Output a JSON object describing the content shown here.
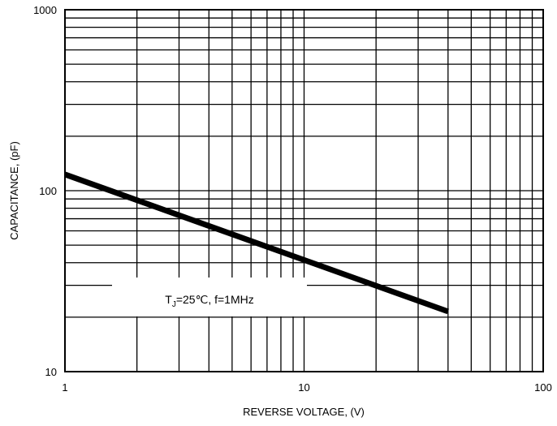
{
  "chart_data": {
    "type": "line",
    "title": "",
    "xlabel": "REVERSE VOLTAGE, (V)",
    "ylabel": "CAPACITANCE, (pF)",
    "xscale": "log",
    "yscale": "log",
    "xlim": [
      1,
      100
    ],
    "ylim": [
      10,
      1000
    ],
    "grid": true,
    "x_tick_labels": [
      "1",
      "10",
      "100"
    ],
    "y_tick_labels": [
      "10",
      "100",
      "1000"
    ],
    "series": [
      {
        "x": [
          1,
          40
        ],
        "y": [
          123,
          21.5
        ],
        "color": "#000000"
      }
    ],
    "annotation": {
      "prefix": "T",
      "subscript": "J",
      "suffix": "=25℃, f=1MHz"
    }
  }
}
